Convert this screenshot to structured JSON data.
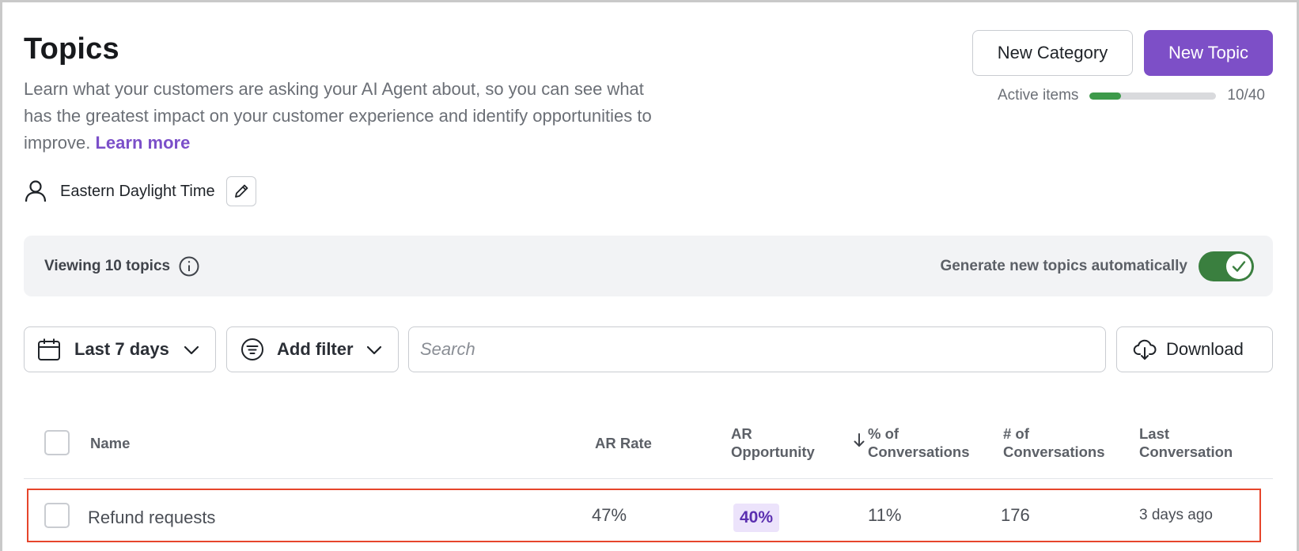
{
  "header": {
    "title": "Topics",
    "description": "Learn what your customers are asking your AI Agent about, so you can see what has the greatest impact on your customer experience and identify opportunities to improve.",
    "learn_more": "Learn more",
    "new_category_label": "New Category",
    "new_topic_label": "New Topic",
    "active_items": {
      "label": "Active items",
      "used": 10,
      "total": 40,
      "count_text": "10/40",
      "progress_fraction": 0.25
    }
  },
  "timezone": {
    "label": "Eastern Daylight Time"
  },
  "banner": {
    "viewing": "Viewing 10 topics",
    "generate_label": "Generate new topics automatically",
    "generate_enabled": true
  },
  "filters": {
    "date_range": "Last 7 days",
    "add_filter": "Add filter",
    "search_placeholder": "Search",
    "download": "Download"
  },
  "table": {
    "columns": {
      "name": "Name",
      "ar_rate": "AR Rate",
      "ar_opportunity_1": "AR",
      "ar_opportunity_2": "Opportunity",
      "pct_conv_1": "% of",
      "pct_conv_2": "Conversations",
      "num_conv_1": "# of",
      "num_conv_2": "Conversations",
      "last_conv_1": "Last",
      "last_conv_2": "Conversation"
    },
    "sorted_column": "% of Conversations",
    "sort_direction": "descending",
    "rows": [
      {
        "name": "Refund requests",
        "ar_rate": "47%",
        "ar_opportunity": "40%",
        "pct_conversations": "11%",
        "num_conversations": "176",
        "last_conversation": "3 days ago"
      }
    ]
  },
  "colors": {
    "primary": "#7d4fc7",
    "progress": "#3d9a4a",
    "toggle_on": "#3a7f3f",
    "highlight_border": "#e6452b",
    "badge_bg": "#ece3fb"
  }
}
